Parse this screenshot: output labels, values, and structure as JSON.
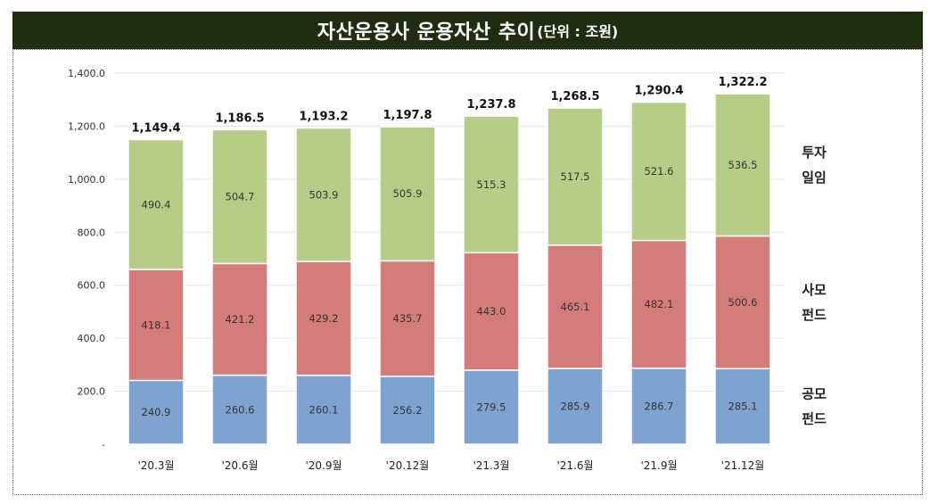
{
  "title": {
    "main": "자산운용사 운용자산 추이",
    "unit": "(단위 : 조원)"
  },
  "chart_data": {
    "type": "bar",
    "stacked": true,
    "categories": [
      "'20.3월",
      "'20.6월",
      "'20.9월",
      "'20.12월",
      "'21.3월",
      "'21.6월",
      "'21.9월",
      "'21.12월"
    ],
    "series": [
      {
        "name": "공모펀드",
        "label_lines": [
          "공모",
          "펀드"
        ],
        "color": "#7fa3d0",
        "values": [
          240.9,
          260.6,
          260.1,
          256.2,
          279.5,
          285.9,
          286.7,
          285.1
        ]
      },
      {
        "name": "사모펀드",
        "label_lines": [
          "사모",
          "펀드"
        ],
        "color": "#d47c7a",
        "values": [
          418.1,
          421.2,
          429.2,
          435.7,
          443.0,
          465.1,
          482.1,
          500.6
        ]
      },
      {
        "name": "투자일임",
        "label_lines": [
          "투자",
          "일임"
        ],
        "color": "#b7cd87",
        "values": [
          490.4,
          504.7,
          503.9,
          505.9,
          515.3,
          517.5,
          521.6,
          536.5
        ]
      }
    ],
    "totals": [
      "1,149.4",
      "1,186.5",
      "1,193.2",
      "1,197.8",
      "1,237.8",
      "1,268.5",
      "1,290.4",
      "1,322.2"
    ],
    "yticks": [
      "-",
      "200.0",
      "400.0",
      "600.0",
      "800.0",
      "1,000.0",
      "1,200.0",
      "1,400.0"
    ],
    "ylim": [
      0,
      1400
    ],
    "grid": true,
    "legend": "right"
  }
}
